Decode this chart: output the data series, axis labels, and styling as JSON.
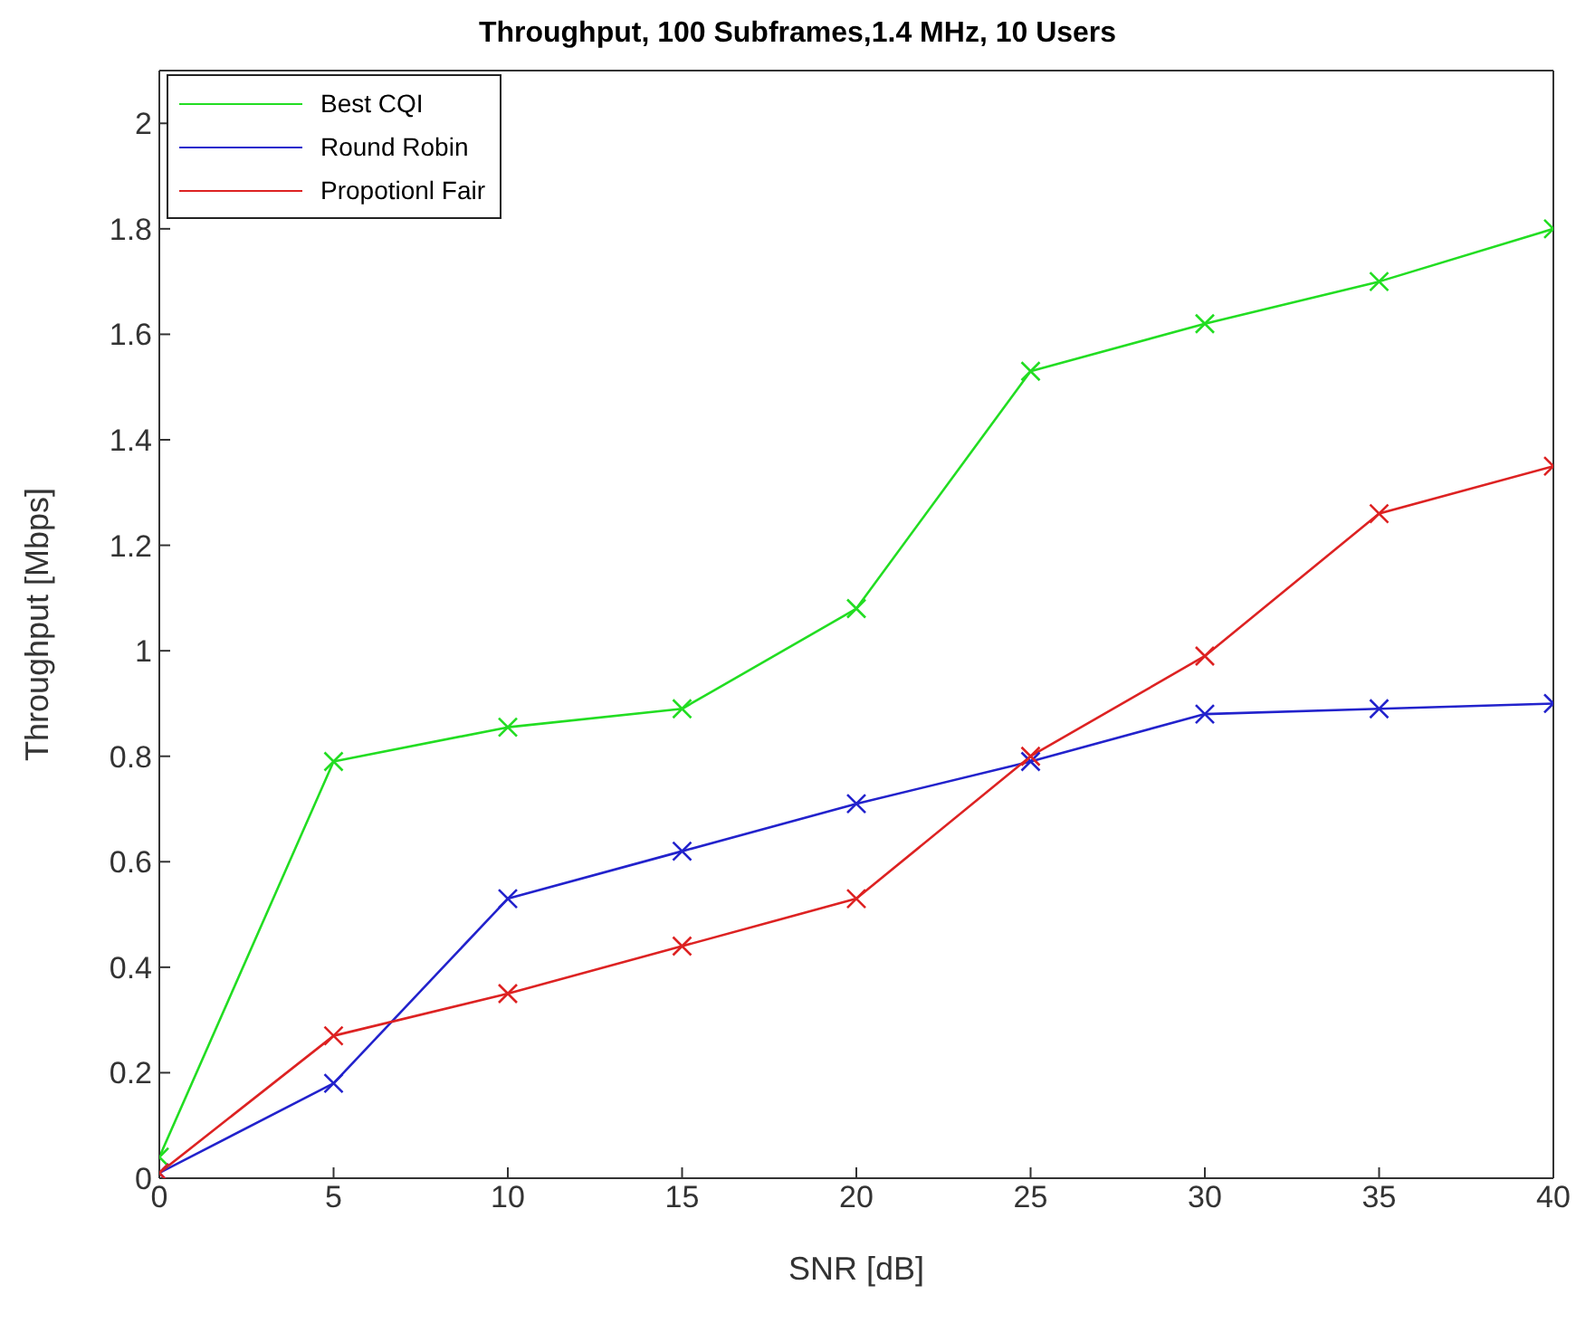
{
  "chart_data": {
    "type": "line",
    "title": "Throughput, 100 Subframes,1.4 MHz, 10 Users",
    "xlabel": "SNR [dB]",
    "ylabel": "Throughput [Mbps]",
    "x": [
      0,
      5,
      10,
      15,
      20,
      25,
      30,
      35,
      40
    ],
    "series": [
      {
        "name": "Best CQI",
        "color": "#22dd22",
        "values": [
          0.04,
          0.79,
          0.855,
          0.89,
          1.08,
          1.53,
          1.62,
          1.7,
          1.8
        ]
      },
      {
        "name": "Round Robin",
        "color": "#2222cc",
        "values": [
          0.01,
          0.18,
          0.53,
          0.62,
          0.71,
          0.79,
          0.88,
          0.89,
          0.9
        ]
      },
      {
        "name": "Propotionl Fair",
        "color": "#dd2222",
        "values": [
          0.01,
          0.27,
          0.35,
          0.44,
          0.53,
          0.8,
          0.99,
          1.26,
          1.35
        ]
      }
    ],
    "xlim": [
      0,
      40
    ],
    "xticks": [
      0,
      5,
      10,
      15,
      20,
      25,
      30,
      35,
      40
    ],
    "ylim": [
      0,
      2.1
    ],
    "yticks": [
      0,
      0.2,
      0.4,
      0.6,
      0.8,
      1,
      1.2,
      1.4,
      1.6,
      1.8,
      2
    ],
    "grid": false,
    "legend": "top left",
    "marker": "cross",
    "line_style": "solid"
  }
}
